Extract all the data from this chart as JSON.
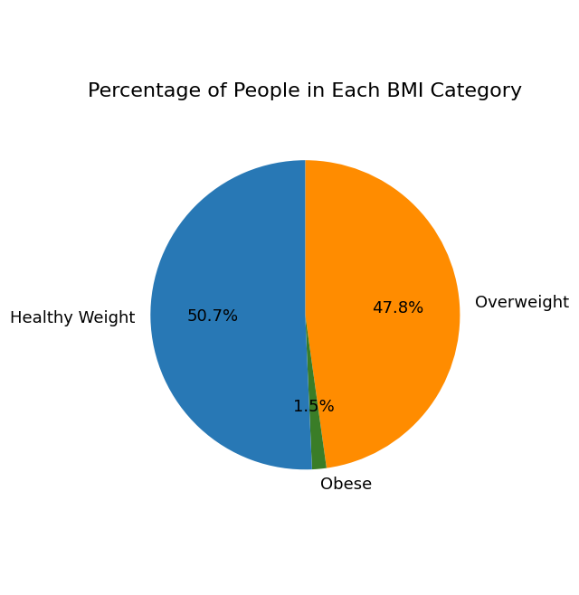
{
  "title": "Percentage of People in Each BMI Category",
  "categories": [
    "Overweight",
    "Obese",
    "Healthy Weight"
  ],
  "values": [
    47.8,
    1.5,
    50.7
  ],
  "colors": [
    "#ff8c00",
    "#3a7d27",
    "#2878b5"
  ],
  "startangle": 90,
  "counterclock": false,
  "title_fontsize": 16,
  "label_fontsize": 13,
  "autopct_fontsize": 13
}
